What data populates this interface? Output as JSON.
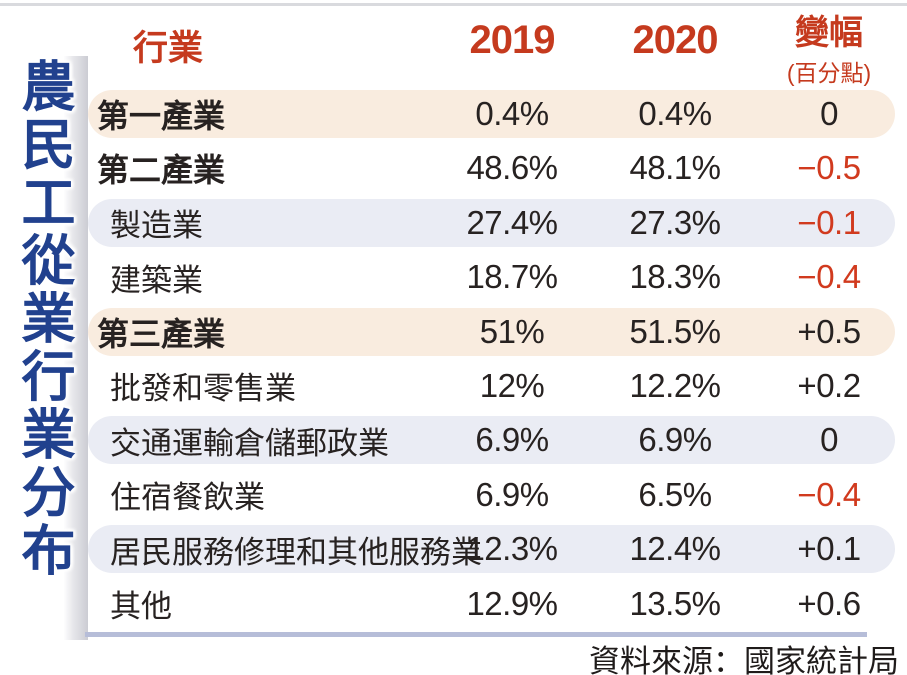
{
  "page": {
    "vertical_title": "農民工從業行業分布",
    "source": "資料來源：國家統計局"
  },
  "colors": {
    "header_red": "#c53a1e",
    "negative_red": "#d13a1e",
    "title_navy": "#21418e",
    "row_peach": "#f9ecdf",
    "row_lavender": "#eaecf4",
    "bottom_rule_blue": "#b6bdd8",
    "text_black": "#272221"
  },
  "table": {
    "headers": {
      "industry": "行業",
      "y2019": "2019",
      "y2020": "2020",
      "change": "變幅",
      "change_unit": "(百分點)"
    },
    "rows": [
      {
        "industry": "第一產業",
        "y2019": "0.4%",
        "y2020": "0.4%",
        "change": "0"
      },
      {
        "industry": "第二產業",
        "y2019": "48.6%",
        "y2020": "48.1%",
        "change": "−0.5"
      },
      {
        "industry": "製造業",
        "y2019": "27.4%",
        "y2020": "27.3%",
        "change": "−0.1"
      },
      {
        "industry": "建築業",
        "y2019": "18.7%",
        "y2020": "18.3%",
        "change": "−0.4"
      },
      {
        "industry": "第三產業",
        "y2019": "51%",
        "y2020": "51.5%",
        "change": "+0.5"
      },
      {
        "industry": "批發和零售業",
        "y2019": "12%",
        "y2020": "12.2%",
        "change": "+0.2"
      },
      {
        "industry": "交通運輸倉儲郵政業",
        "y2019": "6.9%",
        "y2020": "6.9%",
        "change": "0"
      },
      {
        "industry": "住宿餐飲業",
        "y2019": "6.9%",
        "y2020": "6.5%",
        "change": "−0.4"
      },
      {
        "industry": "居民服務修理和其他服務業",
        "y2019": "12.3%",
        "y2020": "12.4%",
        "change": "+0.1"
      },
      {
        "industry": "其他",
        "y2019": "12.9%",
        "y2020": "13.5%",
        "change": "+0.6"
      }
    ]
  },
  "chart_data": {
    "type": "table",
    "title": "農民工從業行業分布",
    "columns": [
      "行業",
      "2019",
      "2020",
      "變幅(百分點)"
    ],
    "categories": [
      "第一產業",
      "第二產業",
      "製造業",
      "建築業",
      "第三產業",
      "批發和零售業",
      "交通運輸倉儲郵政業",
      "住宿餐飲業",
      "居民服務修理和其他服務業",
      "其他"
    ],
    "series": [
      {
        "name": "2019",
        "unit": "%",
        "values": [
          0.4,
          48.6,
          27.4,
          18.7,
          51,
          12,
          6.9,
          6.9,
          12.3,
          12.9
        ]
      },
      {
        "name": "2020",
        "unit": "%",
        "values": [
          0.4,
          48.1,
          27.3,
          18.3,
          51.5,
          12.2,
          6.9,
          6.5,
          12.4,
          13.5
        ]
      },
      {
        "name": "變幅(百分點)",
        "unit": "pp",
        "values": [
          0,
          -0.5,
          -0.1,
          -0.4,
          0.5,
          0.2,
          0,
          -0.4,
          0.1,
          0.6
        ]
      }
    ],
    "notes": "第一產業/第三產業 rows highlighted peach; odd sub-rows highlighted lavender; negative changes shown in red",
    "source": "資料來源：國家統計局"
  }
}
